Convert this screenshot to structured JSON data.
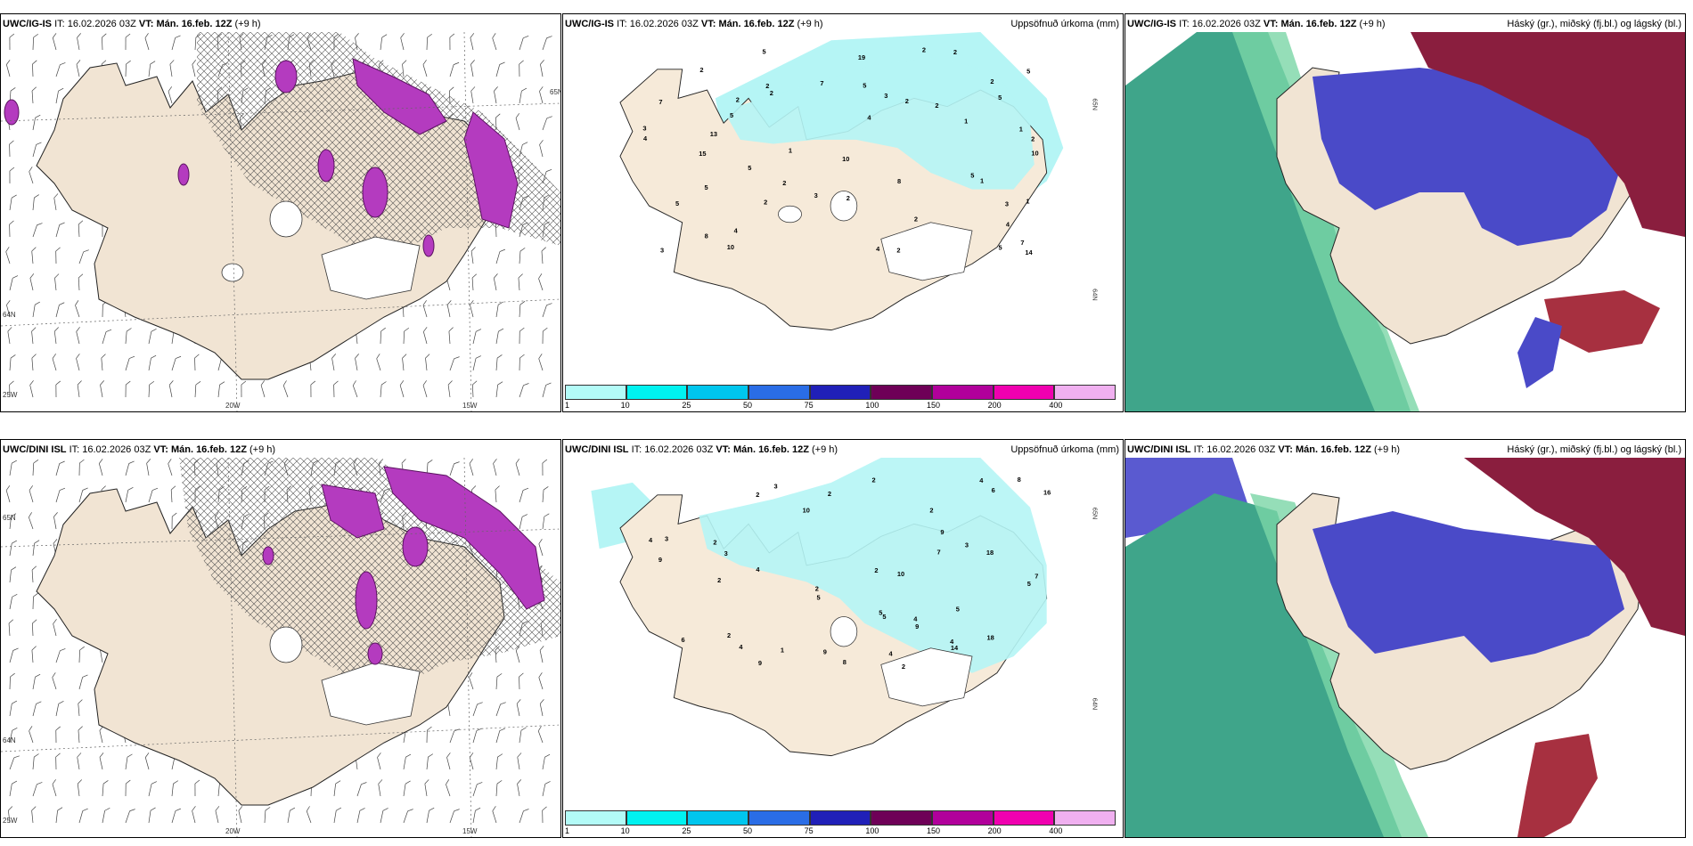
{
  "panels": [
    {
      "model": "UWC/IG-IS",
      "it_label": "IT:",
      "it_value": "16.02.2026 03Z",
      "vt_label": "VT:",
      "vt_value": "Mán. 16.feb. 12Z",
      "lead": "(+9 h)",
      "title_right": "",
      "grid_labels": [
        "20W",
        "15W",
        "25W",
        "64N",
        "65N"
      ]
    },
    {
      "model": "UWC/IG-IS",
      "it_label": "IT:",
      "it_value": "16.02.2026 03Z",
      "vt_label": "VT:",
      "vt_value": "Mán. 16.feb. 12Z",
      "lead": "(+9 h)",
      "title_right": "Uppsöfnuð úrkoma (mm)",
      "grid_labels": [
        "65N",
        "64N"
      ],
      "values": [
        "2",
        "1",
        "2",
        "2",
        "1",
        "1",
        "2",
        "2",
        "3",
        "2",
        "5",
        "1",
        "1",
        "2",
        "5",
        "10",
        "5",
        "3",
        "5",
        "7",
        "7",
        "5",
        "8",
        "5",
        "4",
        "2",
        "3",
        "2",
        "4",
        "5",
        "10",
        "14",
        "15",
        "19",
        "13",
        "4",
        "10",
        "8",
        "5",
        "5",
        "2",
        "7",
        "3",
        "2",
        "4",
        "2",
        "3",
        "2",
        "2",
        "4",
        "5",
        "2"
      ]
    },
    {
      "model": "UWC/IG-IS",
      "it_label": "IT:",
      "it_value": "16.02.2026 03Z",
      "vt_label": "VT:",
      "vt_value": "Mán. 16.feb. 12Z",
      "lead": "(+9 h)",
      "title_right": "Háský (gr.), miðský (fj.bl.) og lágský (bl.)"
    },
    {
      "model": "UWC/DINI ISL",
      "it_label": "IT:",
      "it_value": "16.02.2026 03Z",
      "vt_label": "VT:",
      "vt_value": "Mán. 16.feb. 12Z",
      "lead": "(+9 h)",
      "title_right": "",
      "grid_labels": [
        "20W",
        "15W",
        "25W",
        "64N",
        "65N"
      ]
    },
    {
      "model": "UWC/DINI ISL",
      "it_label": "IT:",
      "it_value": "16.02.2026 03Z",
      "vt_label": "VT:",
      "vt_value": "Mán. 16.feb. 12Z",
      "lead": "(+9 h)",
      "title_right": "Uppsöfnuð úrkoma (mm)",
      "grid_labels": [
        "65N",
        "64N"
      ],
      "values": [
        "2",
        "2",
        "2",
        "2",
        "3",
        "4",
        "5",
        "4",
        "5",
        "4",
        "6",
        "4",
        "2",
        "5",
        "7",
        "4",
        "9",
        "6",
        "5",
        "18",
        "4",
        "5",
        "9",
        "14",
        "10",
        "9",
        "2",
        "3",
        "8",
        "10",
        "9",
        "8",
        "2",
        "1",
        "3",
        "9",
        "2",
        "3",
        "7",
        "4",
        "2",
        "2",
        "16",
        "18"
      ]
    },
    {
      "model": "UWC/DINI ISL",
      "it_label": "IT:",
      "it_value": "16.02.2026 03Z",
      "vt_label": "VT:",
      "vt_value": "Mán. 16.feb. 12Z",
      "lead": "(+9 h)",
      "title_right": "Háský (gr.), miðský (fj.bl.) og lágský (bl.)"
    }
  ],
  "colorbar": {
    "ticks": [
      "1",
      "10",
      "25",
      "50",
      "75",
      "100",
      "150",
      "200",
      "400"
    ],
    "colors": [
      "#b3fbf7",
      "#00f2f0",
      "#00c6ee",
      "#2a6de6",
      "#2020b8",
      "#6e0057",
      "#b1009b",
      "#f000b0",
      "#f0b0f0"
    ]
  },
  "colors": {
    "land": "#f6ead9",
    "snow_land": "#efe2d3",
    "magenta": "#b43bbf",
    "cyan_precip": "#b5f5f5",
    "high_cloud": "#2f9e80",
    "mid_cloud": "#4a4ac8",
    "low_cloud": "#8a1e3e"
  }
}
